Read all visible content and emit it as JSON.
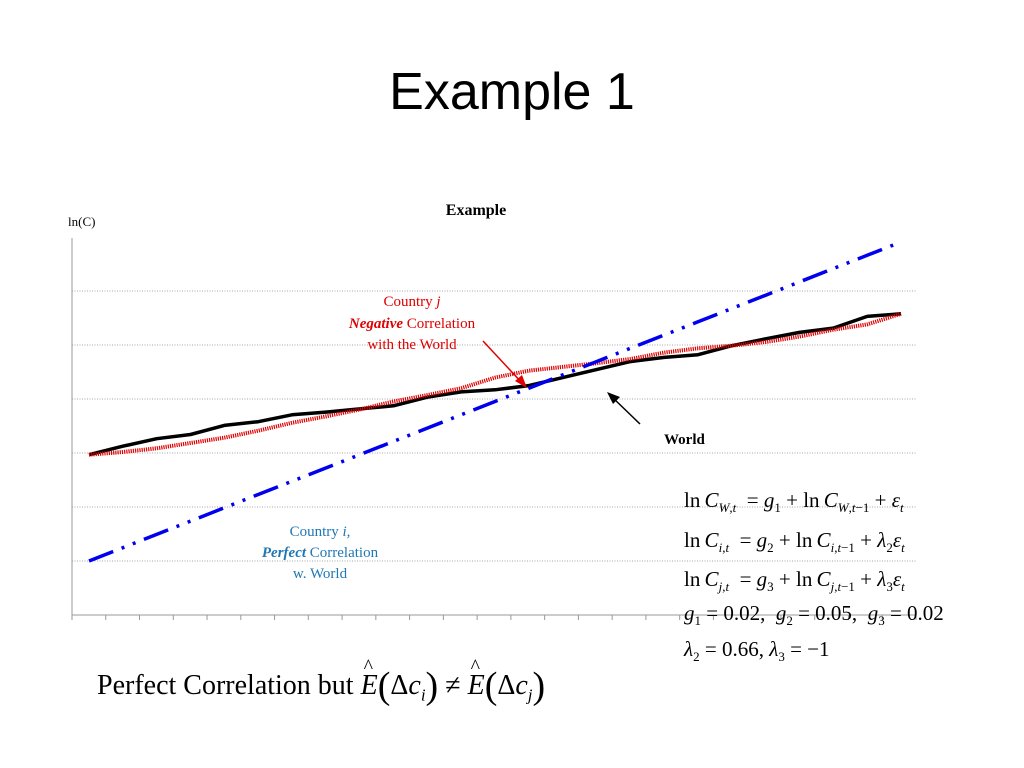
{
  "slide": {
    "title": "Example 1"
  },
  "chart_data": {
    "type": "line",
    "title": "Example",
    "ylabel": "ln(C)",
    "xlabel": "",
    "grid": true,
    "x": [
      0,
      1,
      2,
      3,
      4,
      5,
      6,
      7,
      8,
      9,
      10,
      11,
      12,
      13,
      14,
      15,
      16,
      17,
      18,
      19,
      20,
      21,
      22,
      23,
      24
    ],
    "ylim": [
      0,
      7
    ],
    "series": [
      {
        "name": "World",
        "color": "#000000",
        "style": "solid",
        "values": [
          3.0,
          3.16,
          3.3,
          3.38,
          3.55,
          3.62,
          3.75,
          3.8,
          3.86,
          3.92,
          4.08,
          4.18,
          4.22,
          4.3,
          4.45,
          4.6,
          4.75,
          4.83,
          4.88,
          5.05,
          5.18,
          5.3,
          5.38,
          5.6,
          5.65
        ]
      },
      {
        "name": "Country j",
        "color": "#e00000",
        "style": "dotted-thick",
        "values": [
          3.0,
          3.05,
          3.12,
          3.22,
          3.32,
          3.45,
          3.6,
          3.72,
          3.85,
          4.0,
          4.12,
          4.25,
          4.45,
          4.58,
          4.65,
          4.72,
          4.8,
          4.92,
          5.0,
          5.05,
          5.12,
          5.22,
          5.35,
          5.45,
          5.65
        ]
      },
      {
        "name": "Country i",
        "color": "#0000ee",
        "style": "dash-dot",
        "values": [
          1.0,
          1.25,
          1.5,
          1.75,
          2.0,
          2.25,
          2.5,
          2.75,
          3.0,
          3.25,
          3.5,
          3.75,
          4.0,
          4.25,
          4.5,
          4.75,
          5.0,
          5.25,
          5.5,
          5.75,
          6.0,
          6.25,
          6.5,
          6.75,
          7.0
        ]
      }
    ],
    "annotations": {
      "country_j": {
        "line1_a": "Country ",
        "line1_b": "j",
        "line2_a": "Negative",
        "line2_b": " Correlation",
        "line3": "with the World",
        "color": "#e00000"
      },
      "world": {
        "text": "World"
      },
      "country_i": {
        "line1_a": "Country ",
        "line1_b": "i,",
        "line2_a": "Perfect",
        "line2_b": " Correlation",
        "line3": "w. World",
        "color": "#1f77b4"
      }
    }
  },
  "equations": {
    "eq1": "ln C_W,t = g_1 + ln C_W,t−1 + ε_t",
    "eq2": "ln C_i,t = g_2 + ln C_i,t−1 + λ_2 ε_t",
    "eq3": "ln C_j,t = g_3 + ln C_j,t−1 + λ_3 ε_t",
    "eq4": "g_1 = 0.02, g_2 = 0.05, g_3 = 0.02",
    "eq5": "λ_2 = 0.66, λ_3 = −1"
  },
  "caption": {
    "text": "Perfect Correlation but",
    "formula": "Ê(Δc_i) ≠ Ê(Δc_j)"
  }
}
